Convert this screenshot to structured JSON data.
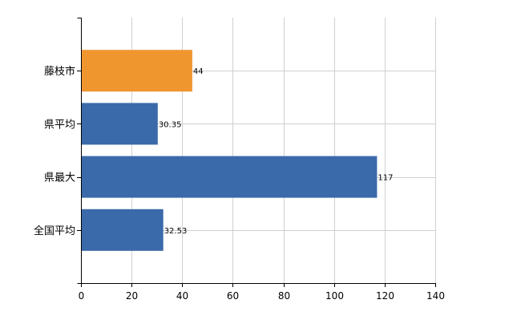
{
  "chart_data": {
    "type": "bar",
    "orientation": "horizontal",
    "categories": [
      "藤枝市",
      "県平均",
      "県最大",
      "全国平均"
    ],
    "values": [
      44,
      30.35,
      117,
      32.53
    ],
    "data_labels": [
      "44",
      "30.35",
      "117",
      "32.53"
    ],
    "highlight_index": 0,
    "colors": {
      "highlight": "#F0962F",
      "default": "#3B6AAA",
      "grid": "#d0d0d0",
      "axis": "#000000"
    },
    "xlim": [
      0,
      140
    ],
    "xticks": [
      0,
      20,
      40,
      60,
      80,
      100,
      120,
      140
    ],
    "xtick_labels": [
      "0",
      "20",
      "40",
      "60",
      "80",
      "100",
      "120",
      "140"
    ],
    "grid": true,
    "legend": "none",
    "title": "",
    "xlabel": "",
    "ylabel": ""
  }
}
